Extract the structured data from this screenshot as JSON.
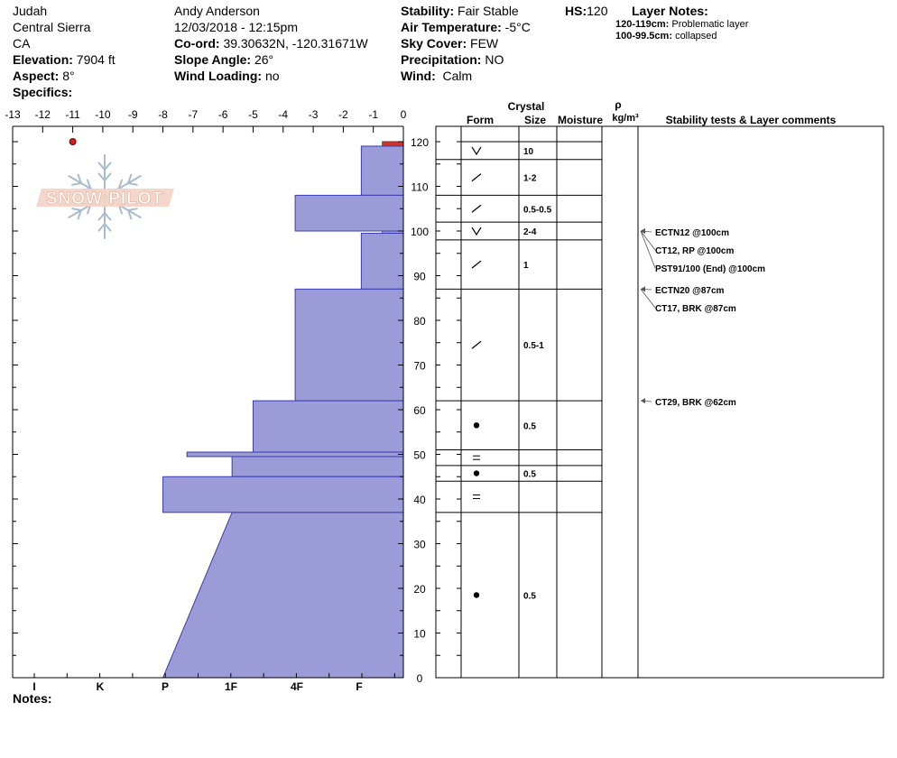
{
  "header": {
    "location": {
      "name": "Judah",
      "range": "Central Sierra",
      "state": "CA",
      "elevation_label": "Elevation:",
      "elevation_value": "7904 ft",
      "aspect_label": "Aspect:",
      "aspect_value": "8°",
      "specifics_label": "Specifics:"
    },
    "observer": {
      "name": "Andy Anderson",
      "datetime": "12/03/2018 - 12:15pm",
      "coord_label": "Co-ord:",
      "coord_value": "39.30632N, -120.31671W",
      "slope_label": "Slope Angle:",
      "slope_value": "26°",
      "wind_loading_label": "Wind Loading:",
      "wind_loading_value": "no"
    },
    "conditions": {
      "stability_label": "Stability:",
      "stability_value": "Fair Stable",
      "air_temp_label": "Air Temperature:",
      "air_temp_value": "-5°C",
      "sky_label": "Sky Cover:",
      "sky_value": "FEW",
      "precip_label": "Precipitation:",
      "precip_value": "NO",
      "wind_label": "Wind:",
      "wind_value": "Calm"
    },
    "hs_label": "HS:",
    "hs_value": "120",
    "layer_notes_title": "Layer Notes:",
    "layer_notes": [
      {
        "range": "120-119cm:",
        "text": "Problematic layer"
      },
      {
        "range": "100-99.5cm:",
        "text": "collapsed"
      }
    ]
  },
  "logo_text": "SNOW PILOT",
  "notes_label": "Notes:",
  "columns": {
    "crystal": "Crystal",
    "form": "Form",
    "size": "Size",
    "moisture": "Moisture",
    "rho": "ρ",
    "density": "kg/m³",
    "stability": "Stability tests & Layer comments"
  },
  "chart_data": {
    "type": "snow_profile",
    "hs": 120,
    "y_axis": {
      "range": [
        0,
        120
      ],
      "ticks": [
        0,
        10,
        20,
        30,
        40,
        50,
        60,
        70,
        80,
        90,
        100,
        110,
        120
      ]
    },
    "temp_axis": {
      "range": [
        -13,
        0
      ],
      "ticks": [
        "-13",
        "-12",
        "-11",
        "-10",
        "-9",
        "-8",
        "-7",
        "-6",
        "-5",
        "-4",
        "-3",
        "-2",
        "-1",
        "0"
      ]
    },
    "hardness_labels": [
      "I",
      "K",
      "P",
      "1F",
      "4F",
      "F"
    ],
    "temperature_points": [
      {
        "temp": -11,
        "depth": 120
      }
    ],
    "hardness_profile": [
      {
        "top": 120,
        "bottom": 119,
        "level": 0.7,
        "color": "#cc3333"
      },
      {
        "top": 119,
        "bottom": 108,
        "level": 1.4
      },
      {
        "top": 108,
        "bottom": 100,
        "level": 3.6
      },
      {
        "top": 100,
        "bottom": 99.5,
        "level": 0.7
      },
      {
        "top": 99.5,
        "bottom": 87,
        "level": 1.4
      },
      {
        "top": 87,
        "bottom": 62,
        "level": 3.6
      },
      {
        "top": 62,
        "bottom": 50.5,
        "level": 5.0
      },
      {
        "top": 50.5,
        "bottom": 49.5,
        "level": 7.2
      },
      {
        "top": 49.5,
        "bottom": 45,
        "level": 5.7
      },
      {
        "top": 45,
        "bottom": 37,
        "level": 8.0
      },
      {
        "top": 37,
        "bottom": 0,
        "level_top": 5.7,
        "level_bottom": 8.0
      }
    ],
    "layers": [
      {
        "top": 120,
        "bottom": 116,
        "form": "V",
        "size": "10"
      },
      {
        "top": 116,
        "bottom": 108,
        "form": "/",
        "size": "1-2"
      },
      {
        "top": 108,
        "bottom": 102,
        "form": "/",
        "size": "0.5-0.5"
      },
      {
        "top": 102,
        "bottom": 98,
        "form": "V",
        "size": "2-4"
      },
      {
        "top": 98,
        "bottom": 87,
        "form": "/",
        "size": "1"
      },
      {
        "top": 87,
        "bottom": 62,
        "form": "/",
        "size": "0.5-1"
      },
      {
        "top": 62,
        "bottom": 51,
        "form": "dot",
        "size": "0.5"
      },
      {
        "top": 51,
        "bottom": 47.5,
        "form": "=",
        "size": ""
      },
      {
        "top": 47.5,
        "bottom": 44,
        "form": "dot",
        "size": "0.5"
      },
      {
        "top": 44,
        "bottom": 37,
        "form": "=",
        "size": ""
      },
      {
        "top": 37,
        "bottom": 0,
        "form": "dot",
        "size": "0.5"
      }
    ],
    "stability_tests": [
      {
        "depth": 100,
        "text": "ECTN12 @100cm"
      },
      {
        "depth": 100,
        "text": "CT12, RP @100cm"
      },
      {
        "depth": 100,
        "text": "PST91/100 (End) @100cm"
      },
      {
        "depth": 87,
        "text": "ECTN20 @87cm"
      },
      {
        "depth": 87,
        "text": "CT17, BRK @87cm"
      },
      {
        "depth": 62,
        "text": "CT29, BRK @62cm"
      }
    ]
  }
}
